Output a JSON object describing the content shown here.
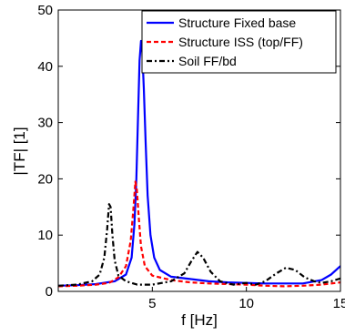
{
  "chart_data": {
    "type": "line",
    "title": "",
    "xlabel": "f [Hz]",
    "ylabel": "|TF| [1]",
    "xlim": [
      0,
      15
    ],
    "ylim": [
      0,
      50
    ],
    "xticks": [
      5,
      10,
      15
    ],
    "xtick_labels": [
      "5",
      "10",
      "15"
    ],
    "yticks": [
      0,
      10,
      20,
      30,
      40,
      50
    ],
    "ytick_labels": [
      "0",
      "10",
      "20",
      "30",
      "40",
      "50"
    ],
    "grid": false,
    "legend_position": "top-right",
    "series": [
      {
        "name": "Structure Fixed base",
        "color": "#0000ff",
        "style": "solid",
        "points": [
          [
            0,
            1.0
          ],
          [
            1,
            1.1
          ],
          [
            2,
            1.3
          ],
          [
            3,
            1.8
          ],
          [
            3.6,
            3.0
          ],
          [
            3.9,
            6.0
          ],
          [
            4.05,
            12
          ],
          [
            4.15,
            20
          ],
          [
            4.25,
            32
          ],
          [
            4.32,
            41
          ],
          [
            4.4,
            44.5
          ],
          [
            4.46,
            43
          ],
          [
            4.55,
            36
          ],
          [
            4.65,
            26
          ],
          [
            4.75,
            17
          ],
          [
            4.9,
            10
          ],
          [
            5.1,
            6.0
          ],
          [
            5.4,
            3.8
          ],
          [
            6,
            2.6
          ],
          [
            7,
            2.2
          ],
          [
            8,
            1.8
          ],
          [
            9,
            1.6
          ],
          [
            10,
            1.5
          ],
          [
            11,
            1.4
          ],
          [
            12,
            1.4
          ],
          [
            13,
            1.4
          ],
          [
            14,
            2.0
          ],
          [
            14.5,
            3.0
          ],
          [
            15,
            4.5
          ]
        ]
      },
      {
        "name": "Structure ISS (top/FF)",
        "color": "#ff0000",
        "style": "dashed",
        "points": [
          [
            0,
            0.9
          ],
          [
            1,
            1.0
          ],
          [
            2,
            1.2
          ],
          [
            2.7,
            1.5
          ],
          [
            3.2,
            2.5
          ],
          [
            3.6,
            4.5
          ],
          [
            3.85,
            9
          ],
          [
            4.0,
            15
          ],
          [
            4.1,
            19.5
          ],
          [
            4.18,
            18
          ],
          [
            4.28,
            13
          ],
          [
            4.4,
            8
          ],
          [
            4.6,
            4.5
          ],
          [
            5,
            2.8
          ],
          [
            6,
            2.0
          ],
          [
            7,
            1.6
          ],
          [
            8,
            1.4
          ],
          [
            9,
            1.3
          ],
          [
            10,
            1.2
          ],
          [
            11,
            1.0
          ],
          [
            12,
            0.9
          ],
          [
            13,
            1.0
          ],
          [
            14,
            1.2
          ],
          [
            15,
            1.6
          ]
        ]
      },
      {
        "name": "Soil FF/bd",
        "color": "#000000",
        "style": "dashdot",
        "points": [
          [
            0,
            1.0
          ],
          [
            1,
            1.2
          ],
          [
            1.8,
            1.8
          ],
          [
            2.2,
            3.0
          ],
          [
            2.45,
            6.0
          ],
          [
            2.6,
            11
          ],
          [
            2.7,
            15.5
          ],
          [
            2.78,
            15
          ],
          [
            2.88,
            10
          ],
          [
            3.0,
            5.5
          ],
          [
            3.2,
            2.8
          ],
          [
            3.6,
            1.8
          ],
          [
            4.2,
            1.2
          ],
          [
            5,
            1.2
          ],
          [
            6,
            1.8
          ],
          [
            6.7,
            3.2
          ],
          [
            7.1,
            5.5
          ],
          [
            7.4,
            7.0
          ],
          [
            7.7,
            6.0
          ],
          [
            8.1,
            3.5
          ],
          [
            8.6,
            1.8
          ],
          [
            9.3,
            1.2
          ],
          [
            10,
            1.5
          ],
          [
            10.5,
            1.2
          ],
          [
            11,
            1.8
          ],
          [
            11.6,
            3.2
          ],
          [
            12.1,
            4.2
          ],
          [
            12.6,
            3.8
          ],
          [
            13.1,
            2.5
          ],
          [
            13.6,
            1.8
          ],
          [
            14,
            1.5
          ],
          [
            14.5,
            1.8
          ],
          [
            15,
            2.3
          ]
        ]
      }
    ]
  }
}
